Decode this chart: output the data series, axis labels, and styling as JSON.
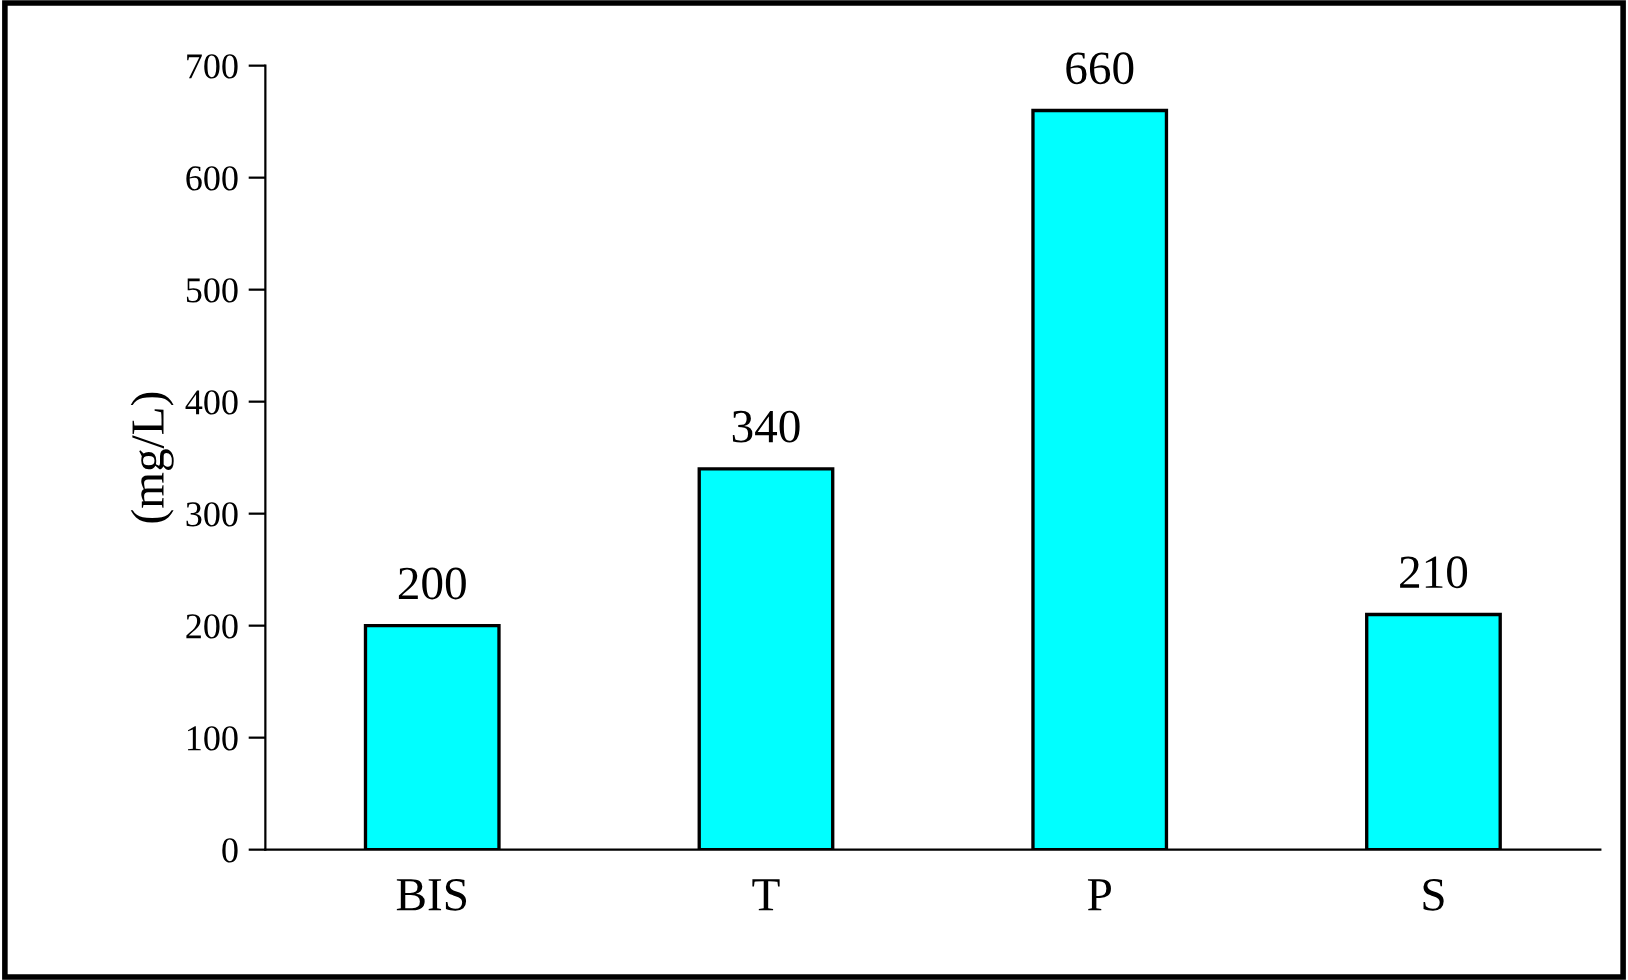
{
  "chart_data": {
    "type": "bar",
    "ylabel": "(mg/L)",
    "categories": [
      "BIS",
      "T",
      "P",
      "S"
    ],
    "values": [
      200,
      340,
      660,
      210
    ],
    "color": "#00ffff",
    "ylim": [
      0,
      700
    ],
    "yticks": [
      0,
      100,
      200,
      300,
      400,
      500,
      600,
      700
    ],
    "data_labels": true,
    "grid": false,
    "legend": false
  }
}
